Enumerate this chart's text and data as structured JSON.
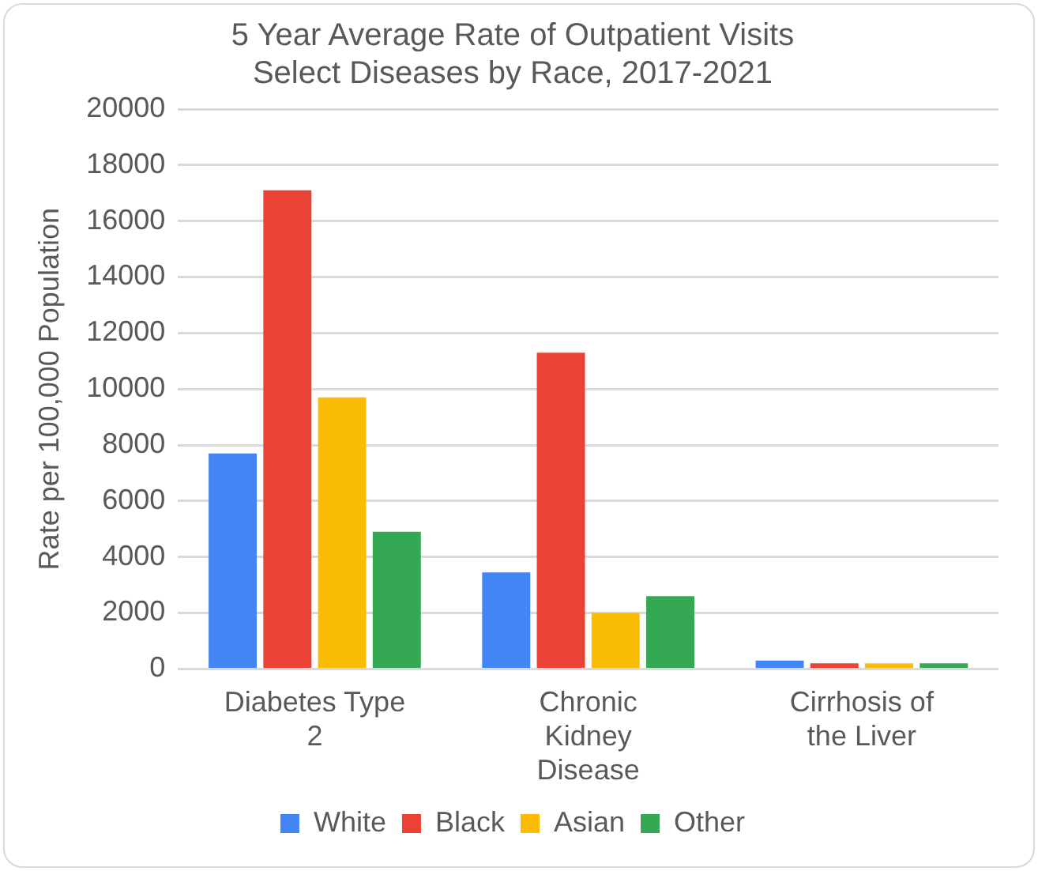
{
  "chart_data": {
    "type": "bar",
    "title": [
      "5 Year Average Rate of Outpatient Visits",
      "Select Diseases by Race, 2017-2021"
    ],
    "ylabel": "Rate per 100,000 Population",
    "categories": [
      [
        "Diabetes Type",
        "2"
      ],
      [
        "Chronic",
        "Kidney",
        "Disease"
      ],
      [
        "Cirrhosis of",
        "the Liver"
      ]
    ],
    "series": [
      {
        "name": "White",
        "color": "#4285f4",
        "values": [
          7700,
          3450,
          300
        ]
      },
      {
        "name": "Black",
        "color": "#ea4335",
        "values": [
          17100,
          11300,
          200
        ]
      },
      {
        "name": "Asian",
        "color": "#fbbc04",
        "values": [
          9700,
          2000,
          200
        ]
      },
      {
        "name": "Other",
        "color": "#34a853",
        "values": [
          4900,
          2600,
          200
        ]
      }
    ],
    "ylim": [
      0,
      20000
    ],
    "yticks": [
      0,
      2000,
      4000,
      6000,
      8000,
      10000,
      12000,
      14000,
      16000,
      18000,
      20000
    ],
    "grid": "y",
    "legend": "bottom"
  }
}
